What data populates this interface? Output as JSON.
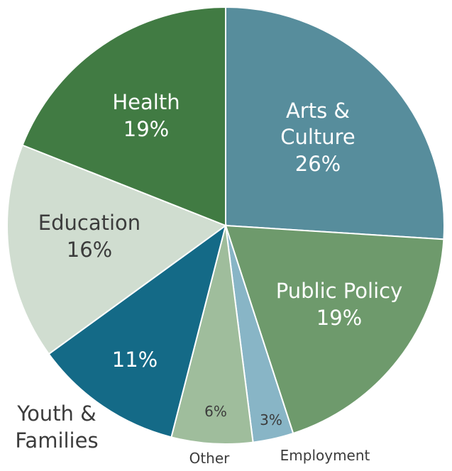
{
  "chart_data": {
    "type": "pie",
    "title": "",
    "slices": [
      {
        "label": "Arts & Culture",
        "value": 26,
        "value_label": "26%",
        "color": "#578d9c"
      },
      {
        "label": "Public Policy",
        "value": 19,
        "value_label": "19%",
        "color": "#6e9a6c"
      },
      {
        "label": "Employment",
        "value": 3,
        "value_label": "3%",
        "color": "#88b5c6"
      },
      {
        "label": "Other",
        "value": 6,
        "value_label": "6%",
        "color": "#9fbd9c"
      },
      {
        "label": "Youth & Families",
        "value": 11,
        "value_label": "11%",
        "color": "#146a87"
      },
      {
        "label": "Education",
        "value": 16,
        "value_label": "16%",
        "color": "#d0ddd0"
      },
      {
        "label": "Health",
        "value": 19,
        "value_label": "19%",
        "color": "#417b43"
      }
    ],
    "label_text": {
      "arts_line1": "Arts &",
      "arts_line2": "Culture",
      "youth_line1": "Youth &",
      "youth_line2": "Families"
    }
  }
}
